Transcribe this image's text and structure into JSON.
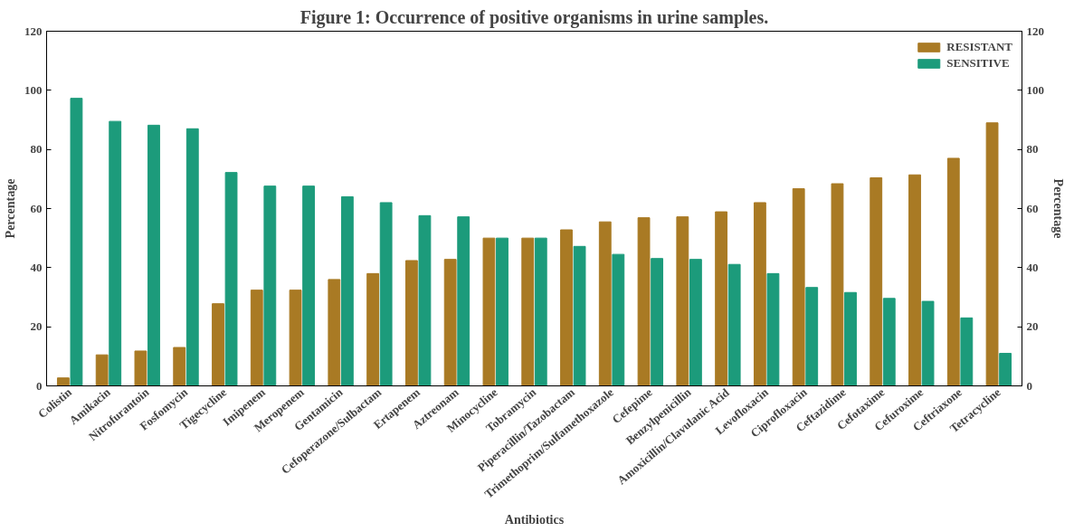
{
  "chart_data": {
    "type": "bar",
    "title": "Figure 1: Occurrence of positive organisms in urine samples.",
    "xlabel": "Antibiotics",
    "ylabel": "Percentage",
    "y2label": "Percentage",
    "categories": [
      "Colistin",
      "Amikacin",
      "Nitrofurantoin",
      "Fosfomycin",
      "Tigecycline",
      "Imipenem",
      "Meropenem",
      "Gentamicin",
      "Cefoperazone/Sulbactam",
      "Ertapenem",
      "Aztreonam",
      "Minocycline",
      "Tobramycin",
      "Piperacillin/Tazobactam",
      "Trimethoprim/Sulfamethoxazole",
      "Cefepime",
      "Benzylpenicillin",
      "Amoxicillin/Clavulanic Acid",
      "Levofloxacin",
      "Ciprofloxacin",
      "Ceftazidime",
      "Cefotaxime",
      "Cefuroxime",
      "Ceftriaxone",
      "Tetracycline"
    ],
    "series": [
      {
        "name": "RESISTANT",
        "color": "#a97a24",
        "values": [
          2.7,
          10.5,
          11.8,
          13,
          27.8,
          32.4,
          32.4,
          36,
          38,
          42.4,
          42.8,
          50,
          50,
          52.8,
          55.5,
          56.9,
          57.2,
          58.9,
          62,
          66.7,
          68.4,
          70.4,
          71.4,
          77,
          89
        ]
      },
      {
        "name": "SENSITIVE",
        "color": "#1c9b7b",
        "values": [
          97.3,
          89.5,
          88.2,
          87,
          72.2,
          67.6,
          67.6,
          64,
          62,
          57.6,
          57.2,
          50,
          50,
          47.2,
          44.5,
          43.1,
          42.8,
          41.1,
          38,
          33.3,
          31.6,
          29.6,
          28.6,
          23,
          11
        ]
      }
    ],
    "ylim": [
      0,
      120
    ],
    "yticks": [
      0,
      20,
      40,
      60,
      80,
      100,
      120
    ],
    "y2lim": [
      0,
      120
    ],
    "y2ticks": [
      0,
      20,
      40,
      60,
      80,
      100,
      120
    ],
    "legend": "top right",
    "grid": false
  }
}
